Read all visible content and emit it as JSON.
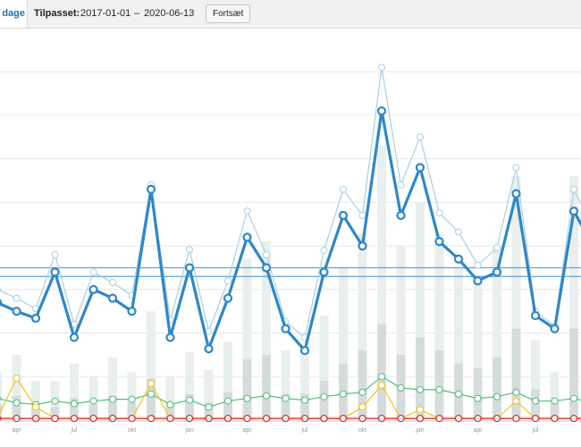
{
  "toolbar": {
    "tab_label": "dage",
    "custom_label": "Tilpasset:",
    "date_from": "2017-01-01",
    "date_separator": "–",
    "date_to": "2020-06-13",
    "go_label": "Fortsæt"
  },
  "colors": {
    "main_line": "#2e87c8",
    "light_line": "#a9cfe6",
    "avg_line": "#5aa5d8",
    "bars_light": "#e9eeee",
    "bars_dark": "#d6dcdc",
    "green": "#4fbf7b",
    "yellow": "#f0c419",
    "red": "#e02b2b",
    "grid": "#e8e8e8"
  },
  "chart_data": {
    "type": "line",
    "x_tick_labels": [
      "apr",
      "jul",
      "okt",
      "jan",
      "apr",
      "jul",
      "okt",
      "jan",
      "apr",
      "jul"
    ],
    "x_tick_index": [
      1,
      4,
      7,
      10,
      13,
      16,
      19,
      22,
      25,
      28
    ],
    "y_range": [
      0,
      430
    ],
    "series": [
      {
        "values": [
          135,
          125,
          117,
          170,
          95,
          150,
          140,
          125,
          265,
          95,
          175,
          82,
          140,
          210,
          175,
          105,
          80,
          170,
          235,
          200,
          355,
          235,
          290,
          205,
          185,
          160,
          170,
          260,
          120,
          105,
          240,
          200
        ]
      },
      {
        "values": [
          150,
          140,
          128,
          190,
          110,
          170,
          158,
          143,
          270,
          115,
          196,
          102,
          160,
          240,
          190,
          113,
          95,
          195,
          265,
          235,
          405,
          270,
          325,
          238,
          216,
          178,
          198,
          290,
          125,
          108,
          265,
          220
        ]
      },
      {
        "values": [
          25,
          20,
          18,
          22,
          19,
          22,
          24,
          24,
          30,
          18,
          23,
          15,
          22,
          25,
          28,
          25,
          23,
          27,
          30,
          32,
          50,
          37,
          35,
          35,
          30,
          25,
          27,
          32,
          22,
          22,
          25,
          20
        ]
      },
      {
        "values": [
          2,
          48,
          15,
          2,
          2,
          2,
          2,
          2,
          42,
          2,
          2,
          2,
          2,
          2,
          2,
          2,
          2,
          2,
          2,
          15,
          40,
          2,
          12,
          2,
          2,
          2,
          2,
          22,
          2,
          2,
          2,
          3
        ]
      },
      {
        "values": [
          2,
          2,
          2,
          2,
          2,
          2,
          2,
          2,
          2,
          2,
          2,
          2,
          2,
          2,
          2,
          2,
          2,
          2,
          2,
          2,
          2,
          2,
          2,
          2,
          2,
          2,
          2,
          2,
          2,
          2,
          2,
          2
        ]
      }
    ],
    "bars_total": [
      55,
      75,
      45,
      45,
      65,
      50,
      72,
      55,
      125,
      50,
      78,
      58,
      90,
      185,
      205,
      80,
      85,
      120,
      175,
      215,
      315,
      200,
      250,
      215,
      175,
      160,
      200,
      280,
      92,
      55,
      280,
      240
    ],
    "bars_dark": [
      18,
      28,
      15,
      15,
      25,
      18,
      28,
      20,
      48,
      18,
      30,
      20,
      32,
      70,
      75,
      30,
      30,
      45,
      65,
      80,
      110,
      75,
      95,
      80,
      65,
      60,
      72,
      105,
      35,
      20,
      105,
      90
    ],
    "avg_lines": [
      175,
      165
    ]
  }
}
